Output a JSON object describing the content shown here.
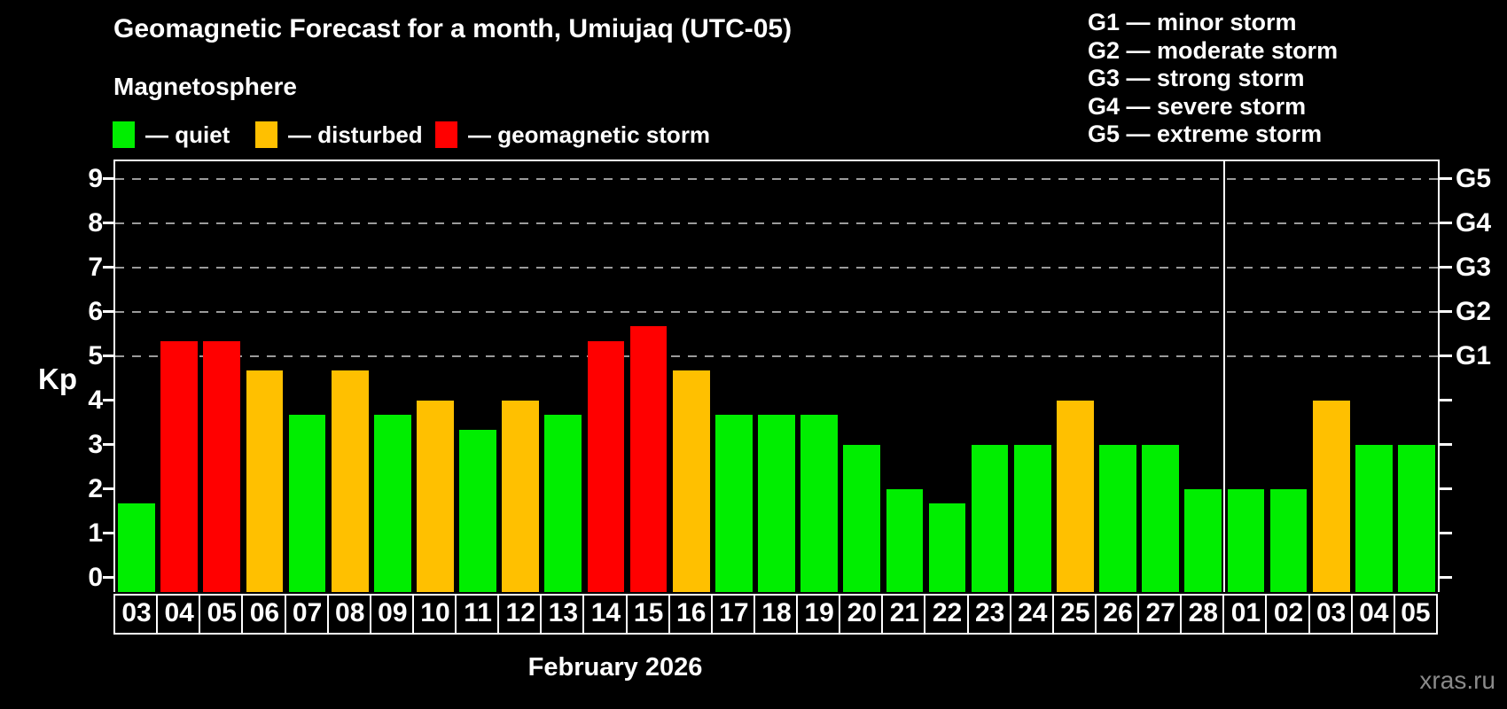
{
  "header": {
    "title": "Geomagnetic Forecast for a month, Umiujaq (UTC-05)",
    "subtitle": "Magnetosphere"
  },
  "legend": {
    "items": [
      {
        "status": "quiet",
        "label": "— quiet",
        "color": "#00ee00"
      },
      {
        "status": "disturbed",
        "label": "— disturbed",
        "color": "#ffc000"
      },
      {
        "status": "storm",
        "label": "— geomagnetic storm",
        "color": "#ff0000"
      }
    ]
  },
  "g_legend": {
    "lines": [
      "G1 — minor storm",
      "G2 — moderate storm",
      "G3 — strong storm",
      "G4 — severe storm",
      "G5 — extreme storm"
    ]
  },
  "footer": {
    "month_label": "February 2026",
    "watermark": "xras.ru"
  },
  "chart_data": {
    "type": "bar",
    "title": "Geomagnetic Forecast for a month, Umiujaq (UTC-05)",
    "xlabel": "February 2026",
    "ylabel": "Kp",
    "ylim": [
      0,
      9
    ],
    "grid": "dashed horizontal lines at Kp 5,6,7,8,9",
    "legend_position": "top",
    "y_ticks": [
      0,
      1,
      2,
      3,
      4,
      5,
      6,
      7,
      8,
      9
    ],
    "g_levels": [
      {
        "label": "G1",
        "kp": 5
      },
      {
        "label": "G2",
        "kp": 6
      },
      {
        "label": "G3",
        "kp": 7
      },
      {
        "label": "G4",
        "kp": 8
      },
      {
        "label": "G5",
        "kp": 9
      }
    ],
    "categories": [
      "03",
      "04",
      "05",
      "06",
      "07",
      "08",
      "09",
      "10",
      "11",
      "12",
      "13",
      "14",
      "15",
      "16",
      "17",
      "18",
      "19",
      "20",
      "21",
      "22",
      "23",
      "24",
      "25",
      "26",
      "27",
      "28",
      "01",
      "02",
      "03",
      "04",
      "05"
    ],
    "values": [
      1.67,
      5.33,
      5.33,
      4.67,
      3.67,
      4.67,
      3.67,
      4.0,
      3.33,
      4.0,
      3.67,
      5.33,
      5.67,
      4.67,
      3.67,
      3.67,
      3.67,
      3.0,
      2.0,
      1.67,
      3.0,
      3.0,
      4.0,
      3.0,
      3.0,
      2.0,
      2.0,
      2.0,
      4.0,
      3.0,
      3.0
    ],
    "statuses": [
      "quiet",
      "storm",
      "storm",
      "disturbed",
      "quiet",
      "disturbed",
      "quiet",
      "disturbed",
      "quiet",
      "disturbed",
      "quiet",
      "storm",
      "storm",
      "disturbed",
      "quiet",
      "quiet",
      "quiet",
      "quiet",
      "quiet",
      "quiet",
      "quiet",
      "quiet",
      "disturbed",
      "quiet",
      "quiet",
      "quiet",
      "quiet",
      "quiet",
      "disturbed",
      "quiet",
      "quiet"
    ],
    "month_boundary_index": 26
  }
}
